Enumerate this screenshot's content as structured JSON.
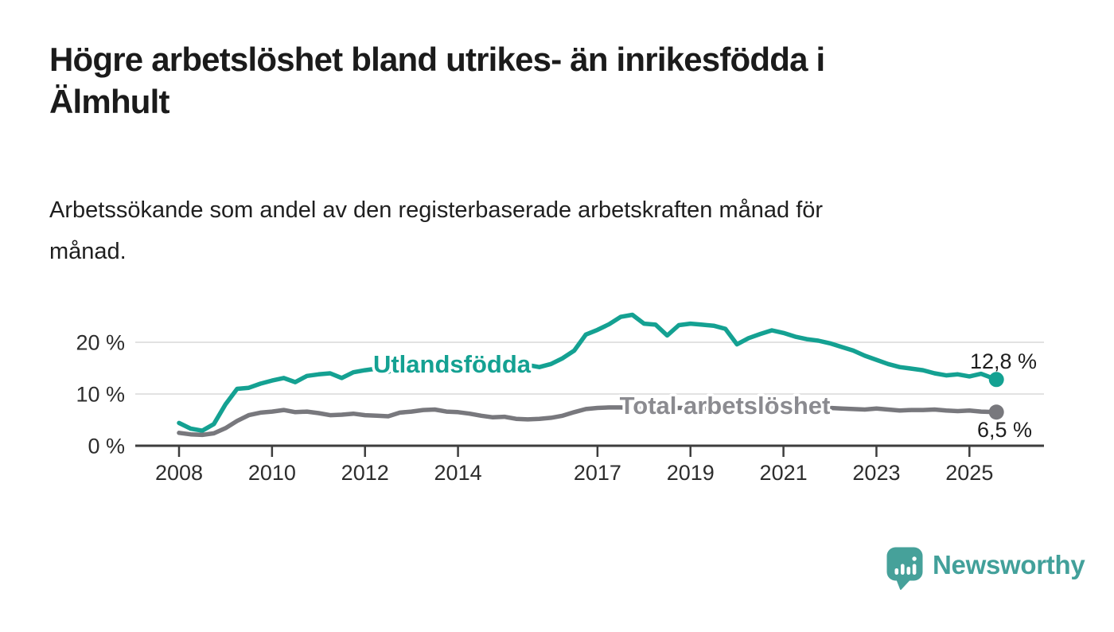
{
  "header": {
    "title": "Högre arbetslöshet bland utrikes- än inrikesfödda i\nÄlmhult",
    "subtitle": "Arbetssökande som andel av den registerbaserade arbetskraften månad för\nmånad."
  },
  "chart_data": {
    "type": "line",
    "unit": "%",
    "grid": "horizontal-only",
    "legend_position": "inline-on-lines",
    "ylim": [
      0,
      27
    ],
    "xlim": [
      2008,
      2026.5
    ],
    "gridlines": [
      10,
      20
    ],
    "y_ticks": [
      {
        "value": 0,
        "label": "0 %"
      },
      {
        "value": 10,
        "label": "10 %"
      },
      {
        "value": 20,
        "label": "20 %"
      }
    ],
    "x_ticks": [
      {
        "value": 2008,
        "label": "2008"
      },
      {
        "value": 2010,
        "label": "2010"
      },
      {
        "value": 2012,
        "label": "2012"
      },
      {
        "value": 2014,
        "label": "2014"
      },
      {
        "value": 2017,
        "label": "2017"
      },
      {
        "value": 2019,
        "label": "2019"
      },
      {
        "value": 2021,
        "label": "2021"
      },
      {
        "value": 2023,
        "label": "2023"
      },
      {
        "value": 2025,
        "label": "2025"
      }
    ],
    "x": [
      2008,
      2008.25,
      2008.5,
      2008.75,
      2009,
      2009.25,
      2009.5,
      2009.75,
      2010,
      2010.25,
      2010.5,
      2010.75,
      2011,
      2011.25,
      2011.5,
      2011.75,
      2012,
      2012.25,
      2012.5,
      2012.75,
      2013,
      2013.25,
      2013.5,
      2013.75,
      2014,
      2014.25,
      2014.5,
      2014.75,
      2015,
      2015.25,
      2015.5,
      2015.75,
      2016,
      2016.25,
      2016.5,
      2016.75,
      2017,
      2017.25,
      2017.5,
      2017.75,
      2018,
      2018.25,
      2018.5,
      2018.75,
      2019,
      2019.25,
      2019.5,
      2019.75,
      2020,
      2020.25,
      2020.5,
      2020.75,
      2021,
      2021.25,
      2021.5,
      2021.75,
      2022,
      2022.25,
      2022.5,
      2022.75,
      2023,
      2023.25,
      2023.5,
      2023.75,
      2024,
      2024.25,
      2024.5,
      2024.75,
      2025,
      2025.25,
      2025.58
    ],
    "series": [
      {
        "name": "Utlandsfödda",
        "color": "#14a192",
        "end_value": 12.8,
        "end_label": "12,8 %",
        "values": [
          4.4,
          3.3,
          2.9,
          4.2,
          8.0,
          11.0,
          11.2,
          12.0,
          12.6,
          13.1,
          12.3,
          13.5,
          13.8,
          14.0,
          13.1,
          14.2,
          14.6,
          14.9,
          14.3,
          15.4,
          15.7,
          14.8,
          15.1,
          15.4,
          15.5,
          15.2,
          15.6,
          15.3,
          15.7,
          15.4,
          15.6,
          15.2,
          15.8,
          16.9,
          18.4,
          21.5,
          22.4,
          23.5,
          24.9,
          25.3,
          23.6,
          23.4,
          21.3,
          23.3,
          23.6,
          23.4,
          23.2,
          22.6,
          19.6,
          20.8,
          21.6,
          22.3,
          21.8,
          21.1,
          20.6,
          20.3,
          19.8,
          19.1,
          18.4,
          17.4,
          16.6,
          15.8,
          15.2,
          14.9,
          14.6,
          14.0,
          13.6,
          13.8,
          13.4,
          13.9,
          12.8
        ]
      },
      {
        "name": "Total arbetslöshet",
        "color": "#78787d",
        "label_color": "#8b8b90",
        "end_value": 6.5,
        "end_label": "6,5 %",
        "values": [
          2.5,
          2.2,
          2.1,
          2.4,
          3.4,
          4.8,
          5.9,
          6.4,
          6.6,
          6.9,
          6.5,
          6.6,
          6.3,
          5.9,
          6.0,
          6.2,
          5.9,
          5.8,
          5.7,
          6.4,
          6.6,
          6.9,
          7.0,
          6.6,
          6.5,
          6.2,
          5.8,
          5.5,
          5.6,
          5.2,
          5.1,
          5.2,
          5.4,
          5.8,
          6.5,
          7.1,
          7.3,
          7.4,
          7.4,
          7.3,
          7.2,
          7.3,
          7.2,
          7.3,
          7.3,
          7.2,
          7.2,
          7.3,
          7.4,
          7.6,
          7.7,
          7.6,
          7.5,
          7.4,
          7.3,
          7.3,
          7.3,
          7.2,
          7.1,
          7.0,
          7.2,
          7.0,
          6.8,
          6.9,
          6.9,
          7.0,
          6.8,
          6.7,
          6.8,
          6.6,
          6.5
        ]
      }
    ]
  },
  "footer": {
    "brand": "Newsworthy",
    "brand_color": "#42a09a"
  },
  "colors": {
    "accent_teal": "#14a192",
    "line_gray": "#78787d",
    "gridline": "#d8d8d8",
    "axis": "#3d3d3d",
    "text": "#1b1b1b"
  }
}
